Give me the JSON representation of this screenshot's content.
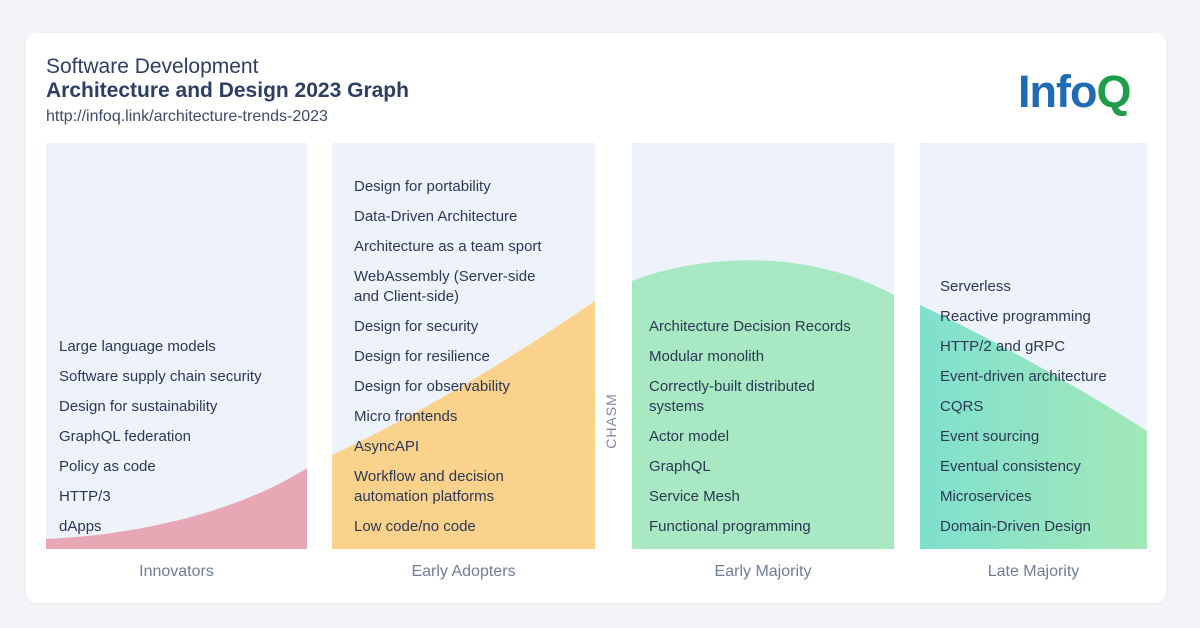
{
  "header": {
    "title_line1": "Software Development",
    "title_line2": "Architecture and Design 2023 Graph",
    "url": "http://infoq.link/architecture-trends-2023"
  },
  "logo": {
    "part1": "Info",
    "part2": "Q",
    "color1": "#1f6bb5",
    "color2": "#1e9e4a"
  },
  "colors": {
    "panel_bg": "#eef2fb",
    "innovators": "#e8a7b4",
    "early_adopters": "#fbd28b",
    "early_majority": "#a8e8c2",
    "late_majority_start": "#7fe0cd",
    "late_majority_end": "#a3e8b8"
  },
  "columns": [
    {
      "label": "Innovators",
      "items": [
        "Large language models",
        "Software supply chain security",
        "Design for sustainability",
        "GraphQL federation",
        "Policy as code",
        "HTTP/3",
        "dApps"
      ]
    },
    {
      "label": "Early Adopters",
      "items": [
        "Design for portability",
        "Data-Driven Architecture",
        "Architecture as a team sport",
        "WebAssembly (Server-side",
        "and Client-side)",
        "Design for security",
        "Design for resilience",
        "Design for observability",
        "Micro frontends",
        "AsyncAPI",
        "Workflow and decision",
        "automation platforms",
        "Low code/no code"
      ]
    },
    {
      "label": "Early Majority",
      "items": [
        "Architecture Decision Records",
        "Modular monolith",
        "Correctly-built distributed",
        "systems",
        "Actor model",
        "GraphQL",
        "Service Mesh",
        "Functional programming"
      ]
    },
    {
      "label": "Late Majority",
      "items": [
        "Serverless",
        "Reactive programming",
        "HTTP/2 and gRPC",
        "Event-driven architecture",
        "CQRS",
        "Event sourcing",
        "Eventual consistency",
        "Microservices",
        "Domain-Driven Design"
      ]
    }
  ],
  "chasm_label": "CHASM"
}
